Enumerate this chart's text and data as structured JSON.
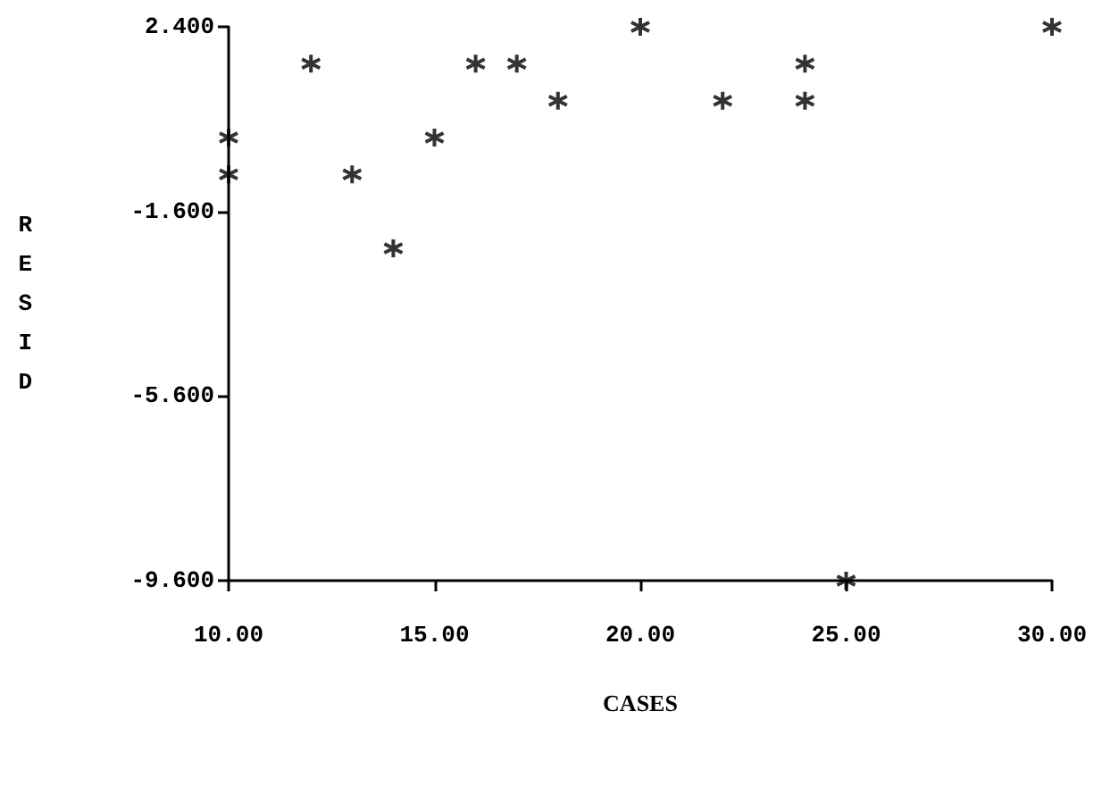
{
  "chart_data": {
    "type": "scatter",
    "xlabel": "CASES",
    "ylabel": "RESID",
    "x": [
      20,
      30,
      12,
      16,
      17,
      24,
      18,
      22,
      24,
      10,
      15,
      10,
      13,
      14,
      25
    ],
    "values": [
      2.4,
      2.4,
      1.6,
      1.6,
      1.6,
      1.6,
      0.8,
      0.8,
      0.8,
      0,
      0,
      -0.8,
      -0.8,
      -2.4,
      -9.6
    ],
    "color": "#000000",
    "marker": "cross",
    "grid": false,
    "xlim": [
      10,
      30
    ],
    "xticks": [
      {
        "value": 10,
        "label": "10.00"
      },
      {
        "value": 15,
        "label": "15.00"
      },
      {
        "value": 20,
        "label": "20.00"
      },
      {
        "value": 25,
        "label": "25.00"
      },
      {
        "value": 30,
        "label": "30.00"
      }
    ],
    "ylim": [
      -9.6,
      2.4
    ],
    "yticks": [
      {
        "value": -9.6,
        "label": "-9.600"
      },
      {
        "value": -5.6,
        "label": "-5.600"
      },
      {
        "value": -1.6,
        "label": "-1.600"
      },
      {
        "value": 2.4,
        "label": "2.400"
      }
    ]
  }
}
